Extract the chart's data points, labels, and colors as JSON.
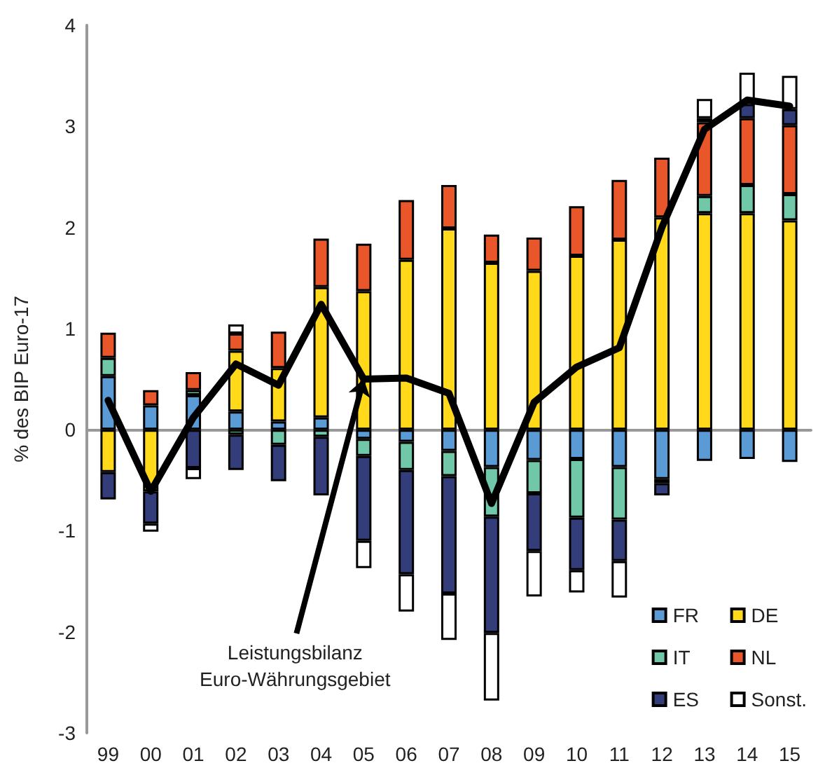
{
  "chart_data": {
    "type": "bar",
    "stacked": true,
    "ylabel": "% des BIP Euro-17",
    "categories": [
      "99",
      "00",
      "01",
      "02",
      "03",
      "04",
      "05",
      "06",
      "07",
      "08",
      "09",
      "10",
      "11",
      "12",
      "13",
      "14",
      "15"
    ],
    "series": [
      {
        "name": "FR",
        "color": "#5b9bd5",
        "values": [
          0.53,
          0.24,
          0.34,
          0.18,
          0.08,
          0.12,
          -0.09,
          -0.12,
          -0.21,
          -0.37,
          -0.3,
          -0.29,
          -0.37,
          -0.49,
          -0.31,
          -0.29,
          -0.32
        ]
      },
      {
        "name": "DE",
        "color": "#ffd91a",
        "values": [
          -0.42,
          -0.61,
          null,
          0.6,
          0.53,
          1.29,
          1.37,
          1.68,
          1.99,
          1.65,
          1.57,
          1.72,
          1.88,
          2.1,
          2.14,
          2.14,
          2.07
        ]
      },
      {
        "name": "IT",
        "color": "#70c8a8",
        "values": [
          0.18,
          null,
          0.05,
          -0.05,
          -0.15,
          -0.07,
          -0.17,
          -0.28,
          -0.25,
          -0.49,
          -0.33,
          -0.58,
          -0.52,
          -0.04,
          0.17,
          0.28,
          0.26
        ]
      },
      {
        "name": "NL",
        "color": "#e8562a",
        "values": [
          0.25,
          0.15,
          0.18,
          0.17,
          0.36,
          0.48,
          0.47,
          0.59,
          0.43,
          0.28,
          0.33,
          0.49,
          0.59,
          0.59,
          0.73,
          0.66,
          0.68
        ]
      },
      {
        "name": "ES",
        "color": "#333d7a",
        "values": [
          -0.27,
          -0.32,
          -0.38,
          -0.35,
          -0.36,
          -0.58,
          -0.84,
          -1.03,
          -1.16,
          -1.15,
          -0.57,
          -0.52,
          -0.41,
          -0.12,
          0.04,
          0.14,
          0.16
        ]
      },
      {
        "name": "Sonst.",
        "color": "#ffffff",
        "values": [
          null,
          -0.08,
          -0.11,
          0.09,
          null,
          null,
          -0.27,
          -0.37,
          -0.46,
          -0.67,
          -0.45,
          -0.22,
          -0.36,
          null,
          0.19,
          0.31,
          0.33
        ]
      },
      {
        "type": "line",
        "color": "#000000",
        "values": [
          0.29,
          -0.61,
          0.12,
          0.65,
          0.44,
          1.24,
          0.5,
          0.51,
          0.36,
          -0.73,
          0.27,
          0.62,
          0.81,
          2.0,
          2.97,
          3.26,
          3.2
        ]
      }
    ],
    "annotations": [
      {
        "text": "Leistungsbilanz\nEuro-Währungsgebiet",
        "x": "05",
        "y": 0.5
      }
    ],
    "ylim": [
      -3,
      4
    ],
    "yticks": [
      -3,
      -2,
      -1,
      0,
      1,
      2,
      3,
      4
    ],
    "legend": "bottom right",
    "marker": "none",
    "line_style": "solid"
  }
}
